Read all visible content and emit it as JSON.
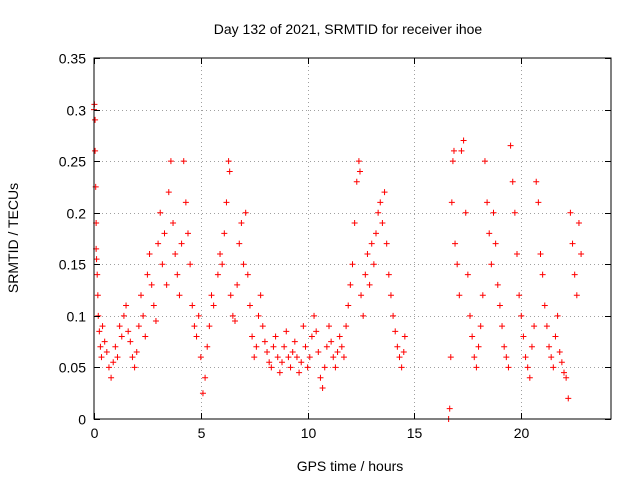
{
  "chart_data": {
    "type": "scatter",
    "title": "Day 132 of 2021, SRMTID for receiver ihoe",
    "xlabel": "GPS time / hours",
    "ylabel": "SRMTID / TECUs",
    "xlim": [
      0,
      24.2
    ],
    "ylim": [
      0,
      0.35
    ],
    "xticks": [
      0,
      5,
      10,
      15,
      20
    ],
    "xtick_labels": [
      "0",
      "5",
      "10",
      "15",
      "20"
    ],
    "yticks": [
      0,
      0.05,
      0.1,
      0.15,
      0.2,
      0.25,
      0.3,
      0.35
    ],
    "ytick_labels": [
      "0",
      "0.05",
      "0.1",
      "0.15",
      "0.2",
      "0.25",
      "0.3",
      "0.35"
    ],
    "grid": true,
    "marker": "+",
    "color": "#ff0000",
    "series": [
      {
        "name": "SRMTID",
        "points": [
          [
            0.0,
            0.3
          ],
          [
            0.02,
            0.305
          ],
          [
            0.05,
            0.29
          ],
          [
            0.05,
            0.26
          ],
          [
            0.08,
            0.225
          ],
          [
            0.1,
            0.19
          ],
          [
            0.1,
            0.165
          ],
          [
            0.12,
            0.155
          ],
          [
            0.15,
            0.14
          ],
          [
            0.18,
            0.12
          ],
          [
            0.2,
            0.1
          ],
          [
            0.25,
            0.085
          ],
          [
            0.3,
            0.07
          ],
          [
            0.35,
            0.06
          ],
          [
            0.4,
            0.09
          ],
          [
            0.5,
            0.075
          ],
          [
            0.6,
            0.065
          ],
          [
            0.7,
            0.05
          ],
          [
            0.8,
            0.04
          ],
          [
            0.9,
            0.055
          ],
          [
            1.0,
            0.07
          ],
          [
            1.1,
            0.06
          ],
          [
            1.2,
            0.09
          ],
          [
            1.3,
            0.08
          ],
          [
            1.4,
            0.1
          ],
          [
            1.5,
            0.11
          ],
          [
            1.6,
            0.085
          ],
          [
            1.7,
            0.075
          ],
          [
            1.8,
            0.06
          ],
          [
            1.9,
            0.05
          ],
          [
            2.0,
            0.065
          ],
          [
            2.1,
            0.09
          ],
          [
            2.2,
            0.12
          ],
          [
            2.3,
            0.1
          ],
          [
            2.4,
            0.08
          ],
          [
            2.5,
            0.14
          ],
          [
            2.6,
            0.16
          ],
          [
            2.7,
            0.13
          ],
          [
            2.8,
            0.11
          ],
          [
            2.9,
            0.095
          ],
          [
            3.0,
            0.17
          ],
          [
            3.1,
            0.2
          ],
          [
            3.2,
            0.15
          ],
          [
            3.3,
            0.18
          ],
          [
            3.4,
            0.13
          ],
          [
            3.5,
            0.22
          ],
          [
            3.6,
            0.25
          ],
          [
            3.7,
            0.19
          ],
          [
            3.8,
            0.16
          ],
          [
            3.9,
            0.14
          ],
          [
            4.0,
            0.12
          ],
          [
            4.1,
            0.17
          ],
          [
            4.2,
            0.25
          ],
          [
            4.3,
            0.21
          ],
          [
            4.4,
            0.18
          ],
          [
            4.5,
            0.15
          ],
          [
            4.6,
            0.11
          ],
          [
            4.7,
            0.09
          ],
          [
            4.8,
            0.08
          ],
          [
            4.9,
            0.1
          ],
          [
            5.0,
            0.06
          ],
          [
            5.1,
            0.025
          ],
          [
            5.2,
            0.04
          ],
          [
            5.3,
            0.07
          ],
          [
            5.4,
            0.09
          ],
          [
            5.5,
            0.12
          ],
          [
            5.6,
            0.11
          ],
          [
            5.8,
            0.14
          ],
          [
            5.9,
            0.16
          ],
          [
            6.0,
            0.15
          ],
          [
            6.1,
            0.18
          ],
          [
            6.2,
            0.21
          ],
          [
            6.3,
            0.25
          ],
          [
            6.35,
            0.24
          ],
          [
            6.4,
            0.12
          ],
          [
            6.5,
            0.1
          ],
          [
            6.6,
            0.095
          ],
          [
            6.7,
            0.13
          ],
          [
            6.8,
            0.17
          ],
          [
            6.9,
            0.19
          ],
          [
            7.0,
            0.15
          ],
          [
            7.1,
            0.2
          ],
          [
            7.2,
            0.14
          ],
          [
            7.3,
            0.11
          ],
          [
            7.4,
            0.08
          ],
          [
            7.5,
            0.06
          ],
          [
            7.6,
            0.07
          ],
          [
            7.7,
            0.1
          ],
          [
            7.8,
            0.12
          ],
          [
            7.9,
            0.09
          ],
          [
            8.0,
            0.075
          ],
          [
            8.1,
            0.065
          ],
          [
            8.2,
            0.055
          ],
          [
            8.3,
            0.05
          ],
          [
            8.4,
            0.07
          ],
          [
            8.5,
            0.08
          ],
          [
            8.6,
            0.06
          ],
          [
            8.7,
            0.045
          ],
          [
            8.8,
            0.055
          ],
          [
            8.9,
            0.07
          ],
          [
            9.0,
            0.085
          ],
          [
            9.1,
            0.06
          ],
          [
            9.2,
            0.05
          ],
          [
            9.3,
            0.065
          ],
          [
            9.4,
            0.075
          ],
          [
            9.5,
            0.06
          ],
          [
            9.6,
            0.045
          ],
          [
            9.7,
            0.055
          ],
          [
            9.8,
            0.09
          ],
          [
            9.9,
            0.07
          ],
          [
            10.0,
            0.05
          ],
          [
            10.1,
            0.06
          ],
          [
            10.2,
            0.08
          ],
          [
            10.3,
            0.1
          ],
          [
            10.4,
            0.085
          ],
          [
            10.5,
            0.065
          ],
          [
            10.6,
            0.04
          ],
          [
            10.7,
            0.03
          ],
          [
            10.8,
            0.05
          ],
          [
            10.9,
            0.07
          ],
          [
            11.0,
            0.09
          ],
          [
            11.1,
            0.075
          ],
          [
            11.2,
            0.06
          ],
          [
            11.3,
            0.05
          ],
          [
            11.4,
            0.065
          ],
          [
            11.5,
            0.08
          ],
          [
            11.6,
            0.07
          ],
          [
            11.7,
            0.06
          ],
          [
            11.8,
            0.09
          ],
          [
            11.9,
            0.11
          ],
          [
            12.0,
            0.13
          ],
          [
            12.1,
            0.15
          ],
          [
            12.2,
            0.19
          ],
          [
            12.3,
            0.23
          ],
          [
            12.4,
            0.25
          ],
          [
            12.45,
            0.24
          ],
          [
            12.5,
            0.12
          ],
          [
            12.6,
            0.1
          ],
          [
            12.7,
            0.14
          ],
          [
            12.8,
            0.16
          ],
          [
            12.9,
            0.13
          ],
          [
            13.0,
            0.17
          ],
          [
            13.1,
            0.15
          ],
          [
            13.2,
            0.18
          ],
          [
            13.3,
            0.2
          ],
          [
            13.4,
            0.21
          ],
          [
            13.5,
            0.19
          ],
          [
            13.6,
            0.22
          ],
          [
            13.7,
            0.17
          ],
          [
            13.8,
            0.14
          ],
          [
            13.9,
            0.12
          ],
          [
            14.0,
            0.1
          ],
          [
            14.1,
            0.085
          ],
          [
            14.2,
            0.07
          ],
          [
            14.3,
            0.06
          ],
          [
            14.4,
            0.05
          ],
          [
            14.5,
            0.065
          ],
          [
            14.55,
            0.08
          ],
          [
            16.6,
            0.0
          ],
          [
            16.65,
            0.01
          ],
          [
            16.7,
            0.06
          ],
          [
            16.75,
            0.21
          ],
          [
            16.8,
            0.25
          ],
          [
            16.85,
            0.26
          ],
          [
            16.9,
            0.17
          ],
          [
            17.0,
            0.15
          ],
          [
            17.1,
            0.12
          ],
          [
            17.2,
            0.26
          ],
          [
            17.3,
            0.27
          ],
          [
            17.4,
            0.2
          ],
          [
            17.5,
            0.14
          ],
          [
            17.6,
            0.1
          ],
          [
            17.7,
            0.08
          ],
          [
            17.8,
            0.06
          ],
          [
            17.9,
            0.05
          ],
          [
            18.0,
            0.07
          ],
          [
            18.1,
            0.09
          ],
          [
            18.2,
            0.12
          ],
          [
            18.3,
            0.25
          ],
          [
            18.4,
            0.21
          ],
          [
            18.5,
            0.18
          ],
          [
            18.6,
            0.15
          ],
          [
            18.7,
            0.2
          ],
          [
            18.8,
            0.17
          ],
          [
            18.9,
            0.13
          ],
          [
            19.0,
            0.11
          ],
          [
            19.1,
            0.09
          ],
          [
            19.2,
            0.07
          ],
          [
            19.3,
            0.06
          ],
          [
            19.4,
            0.05
          ],
          [
            19.5,
            0.265
          ],
          [
            19.6,
            0.23
          ],
          [
            19.7,
            0.2
          ],
          [
            19.8,
            0.16
          ],
          [
            19.9,
            0.12
          ],
          [
            20.0,
            0.1
          ],
          [
            20.1,
            0.08
          ],
          [
            20.2,
            0.06
          ],
          [
            20.3,
            0.05
          ],
          [
            20.4,
            0.04
          ],
          [
            20.5,
            0.07
          ],
          [
            20.6,
            0.09
          ],
          [
            20.7,
            0.23
          ],
          [
            20.8,
            0.21
          ],
          [
            20.9,
            0.16
          ],
          [
            21.0,
            0.14
          ],
          [
            21.1,
            0.11
          ],
          [
            21.2,
            0.09
          ],
          [
            21.3,
            0.07
          ],
          [
            21.4,
            0.06
          ],
          [
            21.5,
            0.05
          ],
          [
            21.6,
            0.08
          ],
          [
            21.7,
            0.1
          ],
          [
            21.8,
            0.065
          ],
          [
            21.9,
            0.055
          ],
          [
            22.0,
            0.045
          ],
          [
            22.1,
            0.04
          ],
          [
            22.2,
            0.02
          ],
          [
            22.3,
            0.2
          ],
          [
            22.4,
            0.17
          ],
          [
            22.5,
            0.14
          ],
          [
            22.6,
            0.12
          ],
          [
            22.7,
            0.19
          ],
          [
            22.8,
            0.16
          ]
        ]
      }
    ]
  }
}
